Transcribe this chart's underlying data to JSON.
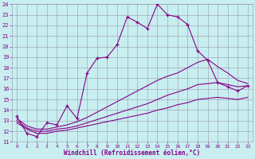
{
  "bg_color": "#c8eef0",
  "line_color": "#880088",
  "xlabel": "Windchill (Refroidissement éolien,°C)",
  "xlim_min": -0.5,
  "xlim_max": 23.5,
  "ylim_min": 11,
  "ylim_max": 24,
  "xticks": [
    0,
    1,
    2,
    3,
    4,
    5,
    6,
    7,
    8,
    9,
    10,
    11,
    12,
    13,
    14,
    15,
    16,
    17,
    18,
    19,
    20,
    21,
    22,
    23
  ],
  "yticks": [
    11,
    12,
    13,
    14,
    15,
    16,
    17,
    18,
    19,
    20,
    21,
    22,
    23,
    24
  ],
  "main_x": [
    0,
    1,
    2,
    3,
    4,
    5,
    6,
    7,
    8,
    9,
    10,
    11,
    12,
    13,
    14,
    15,
    16,
    17,
    18,
    19,
    20,
    21,
    22,
    23
  ],
  "main_y": [
    13.4,
    11.8,
    11.5,
    12.8,
    12.6,
    14.4,
    13.2,
    17.5,
    18.9,
    19.0,
    20.2,
    22.8,
    22.3,
    21.7,
    24.0,
    23.0,
    22.8,
    22.1,
    19.6,
    18.7,
    16.6,
    16.2,
    15.8,
    16.3
  ],
  "flat1_x": [
    0,
    1,
    2,
    3,
    4,
    5,
    6,
    7,
    8,
    9,
    10,
    11,
    12,
    13,
    14,
    15,
    16,
    17,
    18,
    19,
    20,
    21,
    22,
    23
  ],
  "flat1_y": [
    12.8,
    12.2,
    11.8,
    11.8,
    12.0,
    12.1,
    12.3,
    12.5,
    12.7,
    12.9,
    13.1,
    13.3,
    13.5,
    13.7,
    14.0,
    14.2,
    14.5,
    14.7,
    15.0,
    15.1,
    15.2,
    15.1,
    15.0,
    15.2
  ],
  "flat2_x": [
    0,
    1,
    2,
    3,
    4,
    5,
    6,
    7,
    8,
    9,
    10,
    11,
    12,
    13,
    14,
    15,
    16,
    17,
    18,
    19,
    20,
    21,
    22,
    23
  ],
  "flat2_y": [
    13.0,
    12.3,
    12.0,
    12.0,
    12.2,
    12.3,
    12.5,
    12.8,
    13.1,
    13.4,
    13.7,
    14.0,
    14.3,
    14.6,
    15.0,
    15.4,
    15.7,
    16.0,
    16.4,
    16.5,
    16.6,
    16.4,
    16.2,
    16.3
  ],
  "flat3_x": [
    0,
    1,
    2,
    3,
    4,
    5,
    6,
    7,
    8,
    9,
    10,
    11,
    12,
    13,
    14,
    15,
    16,
    17,
    18,
    19,
    20,
    21,
    22,
    23
  ],
  "flat3_y": [
    13.2,
    12.5,
    12.2,
    12.2,
    12.4,
    12.6,
    12.9,
    13.3,
    13.8,
    14.3,
    14.8,
    15.3,
    15.8,
    16.3,
    16.8,
    17.2,
    17.5,
    18.0,
    18.5,
    18.8,
    18.1,
    17.5,
    16.8,
    16.5
  ]
}
